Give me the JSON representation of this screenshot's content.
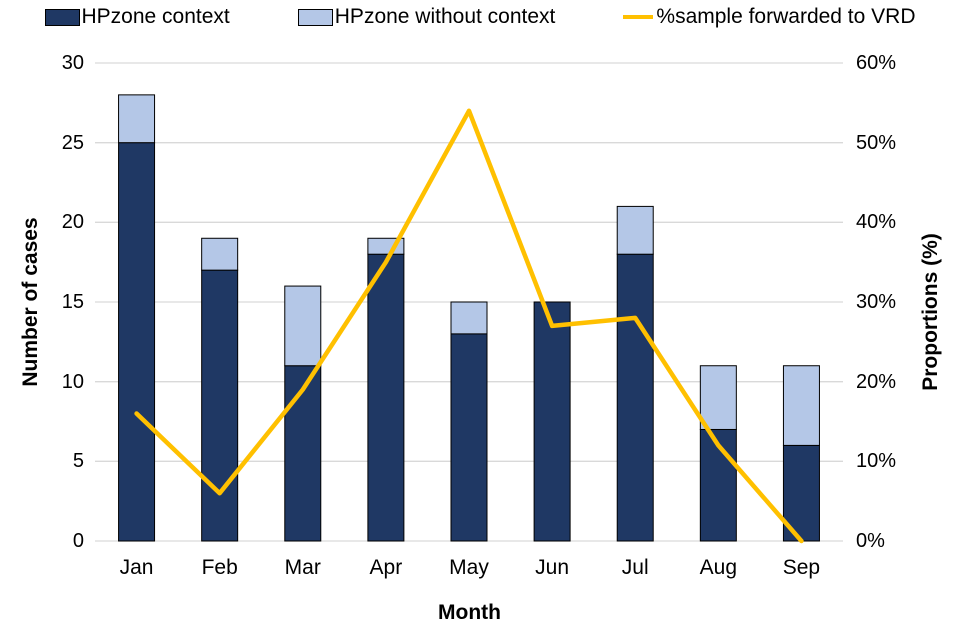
{
  "chart_data": {
    "type": "combo-stacked-bar-line",
    "title": "",
    "x_axis": {
      "title": "Month",
      "categories": [
        "Jan",
        "Feb",
        "Mar",
        "Apr",
        "May",
        "Jun",
        "Jul",
        "Aug",
        "Sep"
      ]
    },
    "left_axis": {
      "title": "Number of cases",
      "min": 0,
      "max": 30,
      "tick_values": [
        0,
        5,
        10,
        15,
        20,
        25,
        30
      ],
      "tick_labels": [
        "0",
        "5",
        "10",
        "15",
        "20",
        "25",
        "30"
      ]
    },
    "right_axis": {
      "title": "Proportions (%)",
      "min": 0,
      "max": 60,
      "tick_values": [
        0,
        10,
        20,
        30,
        40,
        50,
        60
      ],
      "tick_labels": [
        "0%",
        "10%",
        "20%",
        "30%",
        "40%",
        "50%",
        "60%"
      ]
    },
    "series": [
      {
        "name": "HPzone context",
        "type": "bar",
        "stack": "cases",
        "axis": "left",
        "color": "#1F3864",
        "values": [
          25,
          17,
          11,
          18,
          13,
          15,
          18,
          7,
          6
        ]
      },
      {
        "name": "HPzone without context",
        "type": "bar",
        "stack": "cases",
        "axis": "left",
        "color": "#B4C7E7",
        "values": [
          3,
          2,
          5,
          1,
          2,
          0,
          3,
          4,
          5
        ]
      },
      {
        "name": "%sample forwarded to VRD",
        "type": "line",
        "axis": "right",
        "color": "#FFC000",
        "values": [
          16,
          6,
          19,
          35,
          54,
          27,
          28,
          12,
          0
        ]
      }
    ],
    "stack_totals": [
      28,
      19,
      16,
      19,
      15,
      15,
      21,
      11,
      11
    ],
    "grid": true,
    "legend_position": "top",
    "colors": {
      "grid": "#D9D9D9",
      "bar_border": "#000000",
      "text": "#000000",
      "background": "#FFFFFF"
    }
  }
}
